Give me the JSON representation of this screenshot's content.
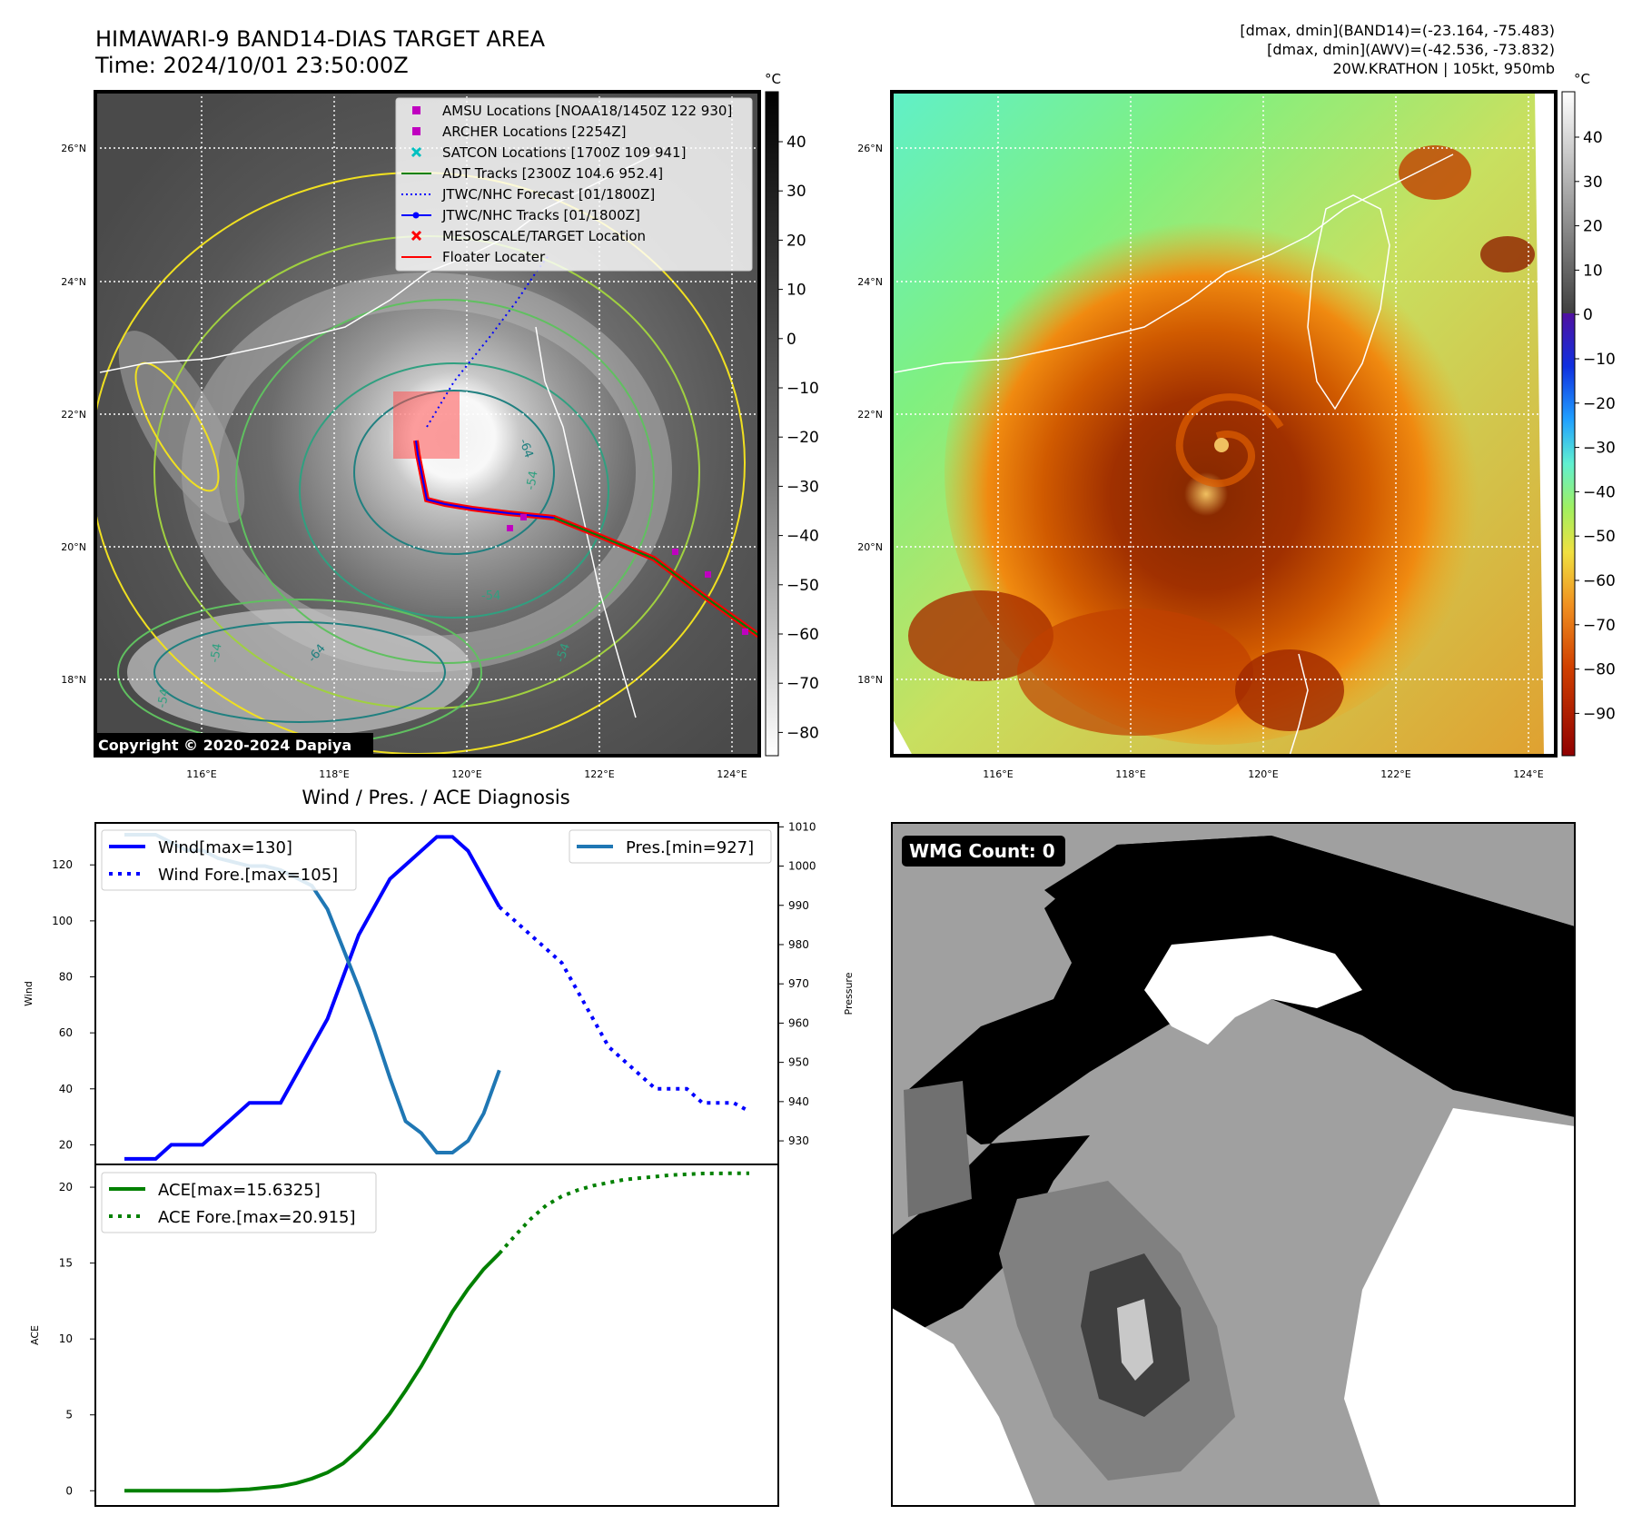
{
  "header": {
    "title_line1": "HIMAWARI-9 BAND14-DIAS TARGET AREA",
    "title_line2": "Time: 2024/10/01 23:50:00Z",
    "info_line1": "[dmax, dmin](BAND14)=(-23.164, -75.483)",
    "info_line2": "[dmax, dmin](AWV)=(-42.536, -73.832)",
    "info_line3": "20W.KRATHON | 105kt, 950mb"
  },
  "left_map": {
    "copyright": "Copyright © 2020-2024 Dapiya",
    "lat_labels": [
      "26°N",
      "24°N",
      "22°N",
      "20°N",
      "18°N"
    ],
    "lon_labels": [
      "116°E",
      "118°E",
      "120°E",
      "122°E",
      "124°E"
    ],
    "legend": [
      {
        "label": "AMSU Locations [NOAA18/1450Z 122 930]",
        "color": "#c000c0",
        "marker": "square"
      },
      {
        "label": "ARCHER Locations [2254Z]",
        "color": "#c000c0",
        "marker": "square"
      },
      {
        "label": "SATCON Locations [1700Z 109 941]",
        "color": "#00c0c0",
        "marker": "x"
      },
      {
        "label": "ADT Tracks [2300Z 104.6 952.4]",
        "color": "#008000",
        "marker": "line"
      },
      {
        "label": "JTWC/NHC Forecast [01/1800Z]",
        "color": "#0000ff",
        "marker": "dotted"
      },
      {
        "label": "JTWC/NHC Tracks [01/1800Z]",
        "color": "#0000ff",
        "marker": "line-dot"
      },
      {
        "label": "MESOSCALE/TARGET Location",
        "color": "#ff0000",
        "marker": "x"
      },
      {
        "label": "Floater Locater",
        "color": "#ff0000",
        "marker": "line"
      }
    ],
    "contour_labels": [
      "-64",
      "-54",
      "-54",
      "-64",
      "-54",
      "-54",
      "-54"
    ],
    "colorbar": {
      "unit": "°C",
      "ticks": [
        "40",
        "30",
        "20",
        "10",
        "0",
        "−10",
        "−20",
        "−30",
        "−40",
        "−50",
        "−60",
        "−70",
        "−80"
      ]
    }
  },
  "right_map": {
    "lat_labels": [
      "26°N",
      "24°N",
      "22°N",
      "20°N",
      "18°N"
    ],
    "lon_labels": [
      "116°E",
      "118°E",
      "120°E",
      "122°E",
      "124°E"
    ],
    "colorbar": {
      "unit": "°C",
      "ticks": [
        "40",
        "30",
        "20",
        "10",
        "0",
        "−10",
        "−20",
        "−30",
        "−40",
        "−50",
        "−60",
        "−70",
        "−80",
        "−90"
      ]
    }
  },
  "wmg": {
    "badge": "WMG Count: 0"
  },
  "chart_data": [
    {
      "type": "line",
      "title": "Wind / Pres. / ACE Diagnosis",
      "ylabel": "Wind",
      "ylabel_right": "Pressure",
      "ylim": [
        13,
        135
      ],
      "ylim_right": [
        924,
        1011
      ],
      "yticks": [
        20,
        40,
        60,
        80,
        100,
        120
      ],
      "yticks_right": [
        930,
        940,
        950,
        960,
        970,
        980,
        990,
        1000,
        1010
      ],
      "x": [
        0,
        1,
        2,
        3,
        4,
        5,
        6,
        7,
        8,
        9,
        10,
        11,
        12,
        13,
        14,
        15,
        16,
        17,
        18,
        19,
        20,
        21,
        22,
        23,
        24,
        25,
        26,
        27,
        28,
        29,
        30,
        31,
        32,
        33,
        34,
        35,
        36,
        37,
        38,
        39,
        40
      ],
      "series": [
        {
          "name": "Wind[max=130]",
          "style": "solid",
          "color": "#0000ff",
          "x": [
            0,
            1,
            2,
            3,
            4,
            5,
            6,
            7,
            8,
            9,
            10,
            11,
            12,
            13,
            14,
            15,
            16,
            17,
            18,
            19,
            20,
            21,
            22,
            23,
            24
          ],
          "values": [
            15,
            15,
            15,
            20,
            20,
            20,
            25,
            30,
            35,
            35,
            35,
            45,
            55,
            65,
            80,
            95,
            105,
            115,
            120,
            125,
            130,
            130,
            125,
            115,
            105
          ]
        },
        {
          "name": "Wind Fore.[max=105]",
          "style": "dotted",
          "color": "#0000ff",
          "x": [
            24,
            25,
            26,
            27,
            28,
            29,
            30,
            31,
            32,
            33,
            34,
            35,
            36,
            37,
            38,
            39,
            40
          ],
          "values": [
            105,
            100,
            95,
            90,
            85,
            75,
            65,
            55,
            50,
            45,
            40,
            40,
            40,
            35,
            35,
            35,
            32
          ]
        },
        {
          "name": "Pres.[min=927]",
          "style": "solid",
          "color": "#1f77b4",
          "axis": "right",
          "x": [
            0,
            1,
            2,
            3,
            4,
            5,
            6,
            7,
            8,
            9,
            10,
            11,
            12,
            13,
            14,
            15,
            16,
            17,
            18,
            19,
            20,
            21,
            22,
            23,
            24
          ],
          "values": [
            1008,
            1008,
            1008,
            1006,
            1004,
            1004,
            1002,
            1001,
            1000,
            1000,
            999,
            997,
            995,
            989,
            979,
            969,
            958,
            946,
            935,
            932,
            927,
            927,
            930,
            937,
            948
          ]
        }
      ]
    },
    {
      "type": "line",
      "ylabel": "ACE",
      "ylim": [
        -1,
        21.5
      ],
      "yticks": [
        0,
        5,
        10,
        15,
        20
      ],
      "series": [
        {
          "name": "ACE[max=15.6325]",
          "style": "solid",
          "color": "#008000",
          "x": [
            0,
            2,
            4,
            6,
            8,
            10,
            11,
            12,
            13,
            14,
            15,
            16,
            17,
            18,
            19,
            20,
            21,
            22,
            23,
            24
          ],
          "values": [
            0,
            0,
            0,
            0,
            0.1,
            0.3,
            0.5,
            0.8,
            1.2,
            1.8,
            2.7,
            3.8,
            5.1,
            6.6,
            8.2,
            10.0,
            11.8,
            13.3,
            14.6,
            15.63
          ]
        },
        {
          "name": "ACE Fore.[max=20.915]",
          "style": "dotted",
          "color": "#008000",
          "x": [
            24,
            25,
            26,
            27,
            28,
            29,
            30,
            31,
            32,
            33,
            34,
            35,
            36,
            37,
            38,
            39,
            40
          ],
          "values": [
            15.63,
            16.8,
            17.9,
            18.8,
            19.4,
            19.8,
            20.1,
            20.3,
            20.5,
            20.6,
            20.7,
            20.8,
            20.85,
            20.9,
            20.91,
            20.915,
            20.915
          ]
        }
      ]
    }
  ]
}
